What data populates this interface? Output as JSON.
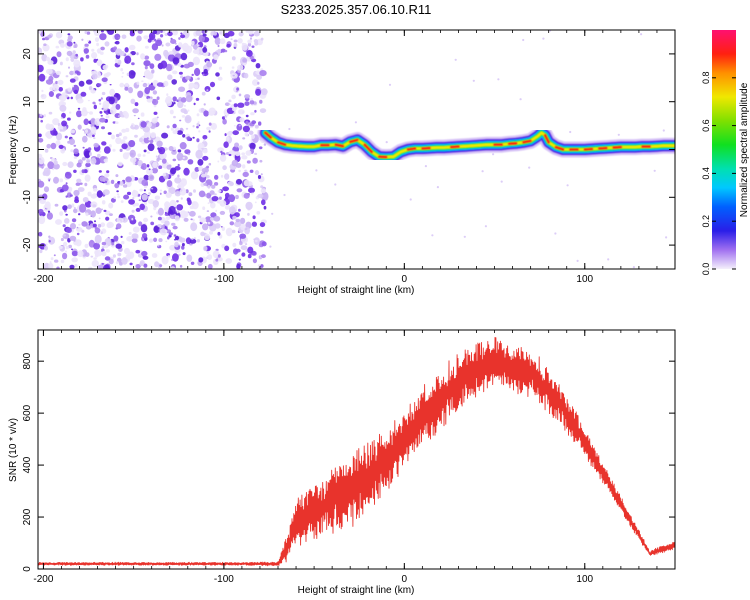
{
  "title": "S233.2025.357.06.10.R11",
  "chart_data": [
    {
      "type": "heatmap",
      "xlabel": "Height of straight line (km)",
      "ylabel": "Frequency (Hz)",
      "xlim": [
        -203,
        150
      ],
      "ylim": [
        -25,
        25
      ],
      "xticks": [
        -200,
        -100,
        0,
        100
      ],
      "yticks": [
        -20,
        -10,
        0,
        10,
        20
      ],
      "noise_region_x": [
        -203,
        -77
      ],
      "ridge": {
        "x": [
          -77,
          -74,
          -70,
          -66,
          -62,
          -58,
          -54,
          -50,
          -46,
          -42,
          -38,
          -34,
          -30,
          -26,
          -22,
          -18,
          -14,
          -10,
          -6,
          -2,
          2,
          6,
          10,
          14,
          18,
          22,
          26,
          30,
          34,
          38,
          42,
          46,
          50,
          54,
          58,
          62,
          66,
          70,
          74,
          76,
          78,
          80,
          84,
          88,
          92,
          96,
          100,
          104,
          108,
          112,
          116,
          120,
          124,
          128,
          132,
          136,
          140,
          144,
          150
        ],
        "y": [
          3.5,
          2.5,
          1.5,
          1.0,
          0.8,
          0.7,
          0.6,
          0.6,
          0.9,
          0.9,
          1.0,
          0.7,
          1.6,
          2.0,
          1.0,
          -0.5,
          -1.5,
          -1.6,
          -1.5,
          -0.5,
          0.0,
          0.2,
          0.2,
          0.3,
          0.4,
          0.4,
          0.5,
          0.6,
          0.7,
          0.8,
          0.9,
          1.0,
          1.0,
          1.0,
          1.2,
          1.3,
          1.5,
          1.8,
          2.8,
          3.5,
          3.0,
          1.5,
          0.5,
          0.0,
          0.0,
          0.0,
          0.0,
          0.1,
          0.2,
          0.3,
          0.4,
          0.5,
          0.5,
          0.5,
          0.6,
          0.6,
          0.7,
          0.8,
          0.8
        ]
      },
      "colorbar": {
        "label": "Normalized spectral amplitude",
        "range": [
          0.0,
          1.0
        ],
        "ticks": [
          "0.0",
          "0.2",
          "0.4",
          "0.6",
          "0.8"
        ],
        "tick_values": [
          0.0,
          0.2,
          0.4,
          0.6,
          0.8
        ]
      }
    },
    {
      "type": "line",
      "xlabel": "Height of straight line (km)",
      "ylabel": "SNR (10 * v/v)",
      "xlim": [
        -203,
        150
      ],
      "ylim": [
        0,
        920
      ],
      "xticks": [
        -200,
        -100,
        0,
        100
      ],
      "yticks": [
        0,
        200,
        400,
        600,
        800
      ],
      "line_color": "#e8332c",
      "envelope": {
        "x": [
          -203,
          -150,
          -100,
          -70,
          -65,
          -60,
          -50,
          -40,
          -30,
          -20,
          -10,
          0,
          10,
          20,
          30,
          40,
          50,
          60,
          70,
          80,
          90,
          100,
          110,
          120,
          130,
          136,
          142,
          150
        ],
        "mean": [
          20,
          20,
          20,
          20,
          80,
          180,
          220,
          260,
          300,
          360,
          420,
          500,
          580,
          650,
          720,
          760,
          790,
          780,
          750,
          690,
          600,
          490,
          370,
          250,
          130,
          60,
          75,
          90
        ],
        "spread": [
          6,
          6,
          6,
          8,
          60,
          90,
          110,
          130,
          150,
          150,
          130,
          120,
          120,
          120,
          120,
          110,
          110,
          100,
          100,
          90,
          80,
          60,
          40,
          30,
          20,
          10,
          15,
          15
        ]
      }
    }
  ]
}
